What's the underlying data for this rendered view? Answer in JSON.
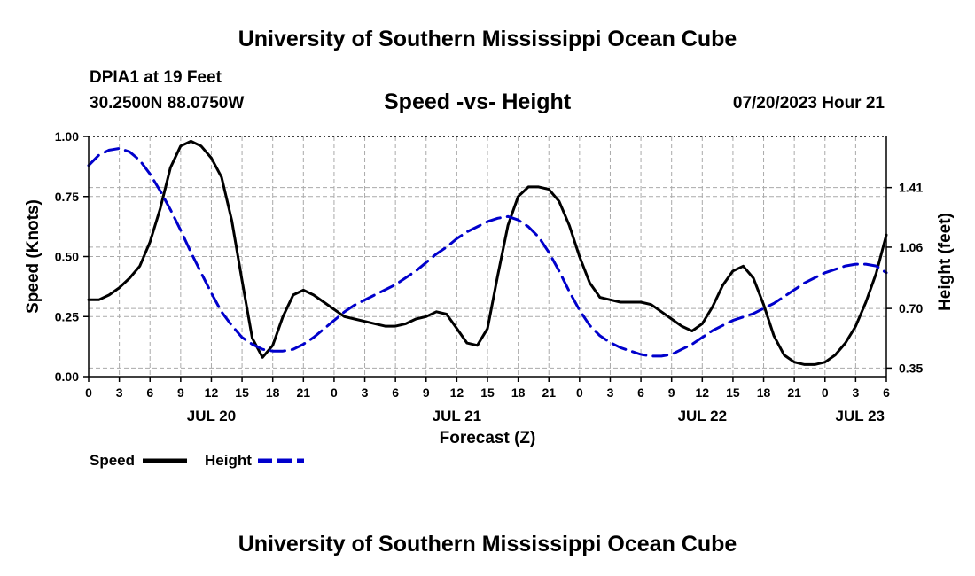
{
  "header": {
    "title": "University of Southern Mississippi Ocean Cube",
    "station": "DPIA1 at 19 Feet",
    "coords": "30.2500N  88.0750W",
    "subtitle": "Speed -vs- Height",
    "datetime": "07/20/2023 Hour 21"
  },
  "footer": {
    "title": "University of Southern Mississippi Ocean Cube"
  },
  "legend": {
    "speed_label": "Speed",
    "height_label": "Height"
  },
  "colors": {
    "speed": "#000000",
    "height": "#0000cc",
    "grid": "#aaaaaa"
  },
  "chart_data": {
    "type": "line",
    "title": "Speed -vs- Height",
    "xlabel": "Forecast (Z)",
    "ylabel": "Speed (Knots)",
    "y2label": "Height (feet)",
    "xlim": [
      0,
      78
    ],
    "ylim": [
      0,
      1.0
    ],
    "y2lim": [
      0.3,
      1.71
    ],
    "x_ticks": [
      0,
      3,
      6,
      9,
      12,
      15,
      18,
      21,
      24,
      27,
      30,
      33,
      36,
      39,
      42,
      45,
      48,
      51,
      54,
      57,
      60,
      63,
      66,
      69,
      72,
      75,
      78
    ],
    "x_tick_labels": [
      "0",
      "3",
      "6",
      "9",
      "12",
      "15",
      "18",
      "21",
      "0",
      "3",
      "6",
      "9",
      "12",
      "15",
      "18",
      "21",
      "0",
      "3",
      "6",
      "9",
      "12",
      "15",
      "18",
      "21",
      "0",
      "3",
      "6"
    ],
    "date_labels": [
      {
        "x": 12,
        "label": "JUL 20"
      },
      {
        "x": 36,
        "label": "JUL 21"
      },
      {
        "x": 60,
        "label": "JUL 22"
      },
      {
        "x": 78,
        "label": "JUL 23"
      }
    ],
    "y_ticks": [
      0.0,
      0.25,
      0.5,
      0.75,
      1.0
    ],
    "y_tick_labels": [
      "0.00",
      "0.25",
      "0.50",
      "0.75",
      "1.00"
    ],
    "y2_ticks": [
      0.35,
      0.7,
      1.06,
      1.41
    ],
    "y2_tick_labels": [
      "0.35",
      "0.70",
      "1.06",
      "1.41"
    ],
    "grid": true,
    "series": [
      {
        "name": "Speed",
        "axis": "left",
        "style": "solid",
        "x": [
          0,
          1,
          2,
          3,
          4,
          5,
          6,
          7,
          8,
          9,
          10,
          11,
          12,
          13,
          14,
          15,
          16,
          17,
          18,
          19,
          20,
          21,
          22,
          23,
          24,
          25,
          26,
          27,
          28,
          29,
          30,
          31,
          32,
          33,
          34,
          35,
          36,
          37,
          38,
          39,
          40,
          41,
          42,
          43,
          44,
          45,
          46,
          47,
          48,
          49,
          50,
          51,
          52,
          53,
          54,
          55,
          56,
          57,
          58,
          59,
          60,
          61,
          62,
          63,
          64,
          65,
          66,
          67,
          68,
          69,
          70,
          71,
          72,
          73,
          74,
          75,
          76,
          77,
          78
        ],
        "values": [
          0.32,
          0.32,
          0.34,
          0.37,
          0.41,
          0.46,
          0.56,
          0.7,
          0.87,
          0.96,
          0.98,
          0.96,
          0.91,
          0.83,
          0.65,
          0.4,
          0.16,
          0.08,
          0.13,
          0.25,
          0.34,
          0.36,
          0.34,
          0.31,
          0.28,
          0.25,
          0.24,
          0.23,
          0.22,
          0.21,
          0.21,
          0.22,
          0.24,
          0.25,
          0.27,
          0.26,
          0.2,
          0.14,
          0.13,
          0.2,
          0.42,
          0.63,
          0.75,
          0.79,
          0.79,
          0.78,
          0.73,
          0.63,
          0.5,
          0.39,
          0.33,
          0.32,
          0.31,
          0.31,
          0.31,
          0.3,
          0.27,
          0.24,
          0.21,
          0.19,
          0.22,
          0.29,
          0.38,
          0.44,
          0.46,
          0.41,
          0.3,
          0.17,
          0.09,
          0.06,
          0.05,
          0.05,
          0.06,
          0.09,
          0.14,
          0.21,
          0.31,
          0.43,
          0.59
        ]
      },
      {
        "name": "Height",
        "axis": "right",
        "style": "dashed",
        "x": [
          0,
          1,
          2,
          3,
          4,
          5,
          6,
          7,
          8,
          9,
          10,
          11,
          12,
          13,
          14,
          15,
          16,
          17,
          18,
          19,
          20,
          21,
          22,
          23,
          24,
          25,
          26,
          27,
          28,
          29,
          30,
          31,
          32,
          33,
          34,
          35,
          36,
          37,
          38,
          39,
          40,
          41,
          42,
          43,
          44,
          45,
          46,
          47,
          48,
          49,
          50,
          51,
          52,
          53,
          54,
          55,
          56,
          57,
          58,
          59,
          60,
          61,
          62,
          63,
          64,
          65,
          66,
          67,
          68,
          69,
          70,
          71,
          72,
          73,
          74,
          75,
          76,
          77,
          78
        ],
        "values": [
          1.54,
          1.6,
          1.63,
          1.64,
          1.62,
          1.57,
          1.49,
          1.39,
          1.28,
          1.16,
          1.03,
          0.91,
          0.79,
          0.68,
          0.6,
          0.53,
          0.49,
          0.46,
          0.45,
          0.45,
          0.46,
          0.49,
          0.53,
          0.58,
          0.63,
          0.68,
          0.72,
          0.75,
          0.78,
          0.81,
          0.84,
          0.88,
          0.92,
          0.97,
          1.02,
          1.06,
          1.11,
          1.15,
          1.18,
          1.21,
          1.23,
          1.24,
          1.22,
          1.18,
          1.12,
          1.03,
          0.92,
          0.8,
          0.69,
          0.6,
          0.54,
          0.5,
          0.47,
          0.45,
          0.43,
          0.42,
          0.42,
          0.43,
          0.46,
          0.49,
          0.53,
          0.57,
          0.6,
          0.63,
          0.65,
          0.67,
          0.7,
          0.73,
          0.77,
          0.81,
          0.85,
          0.88,
          0.91,
          0.93,
          0.95,
          0.96,
          0.96,
          0.95,
          0.91
        ]
      }
    ]
  }
}
